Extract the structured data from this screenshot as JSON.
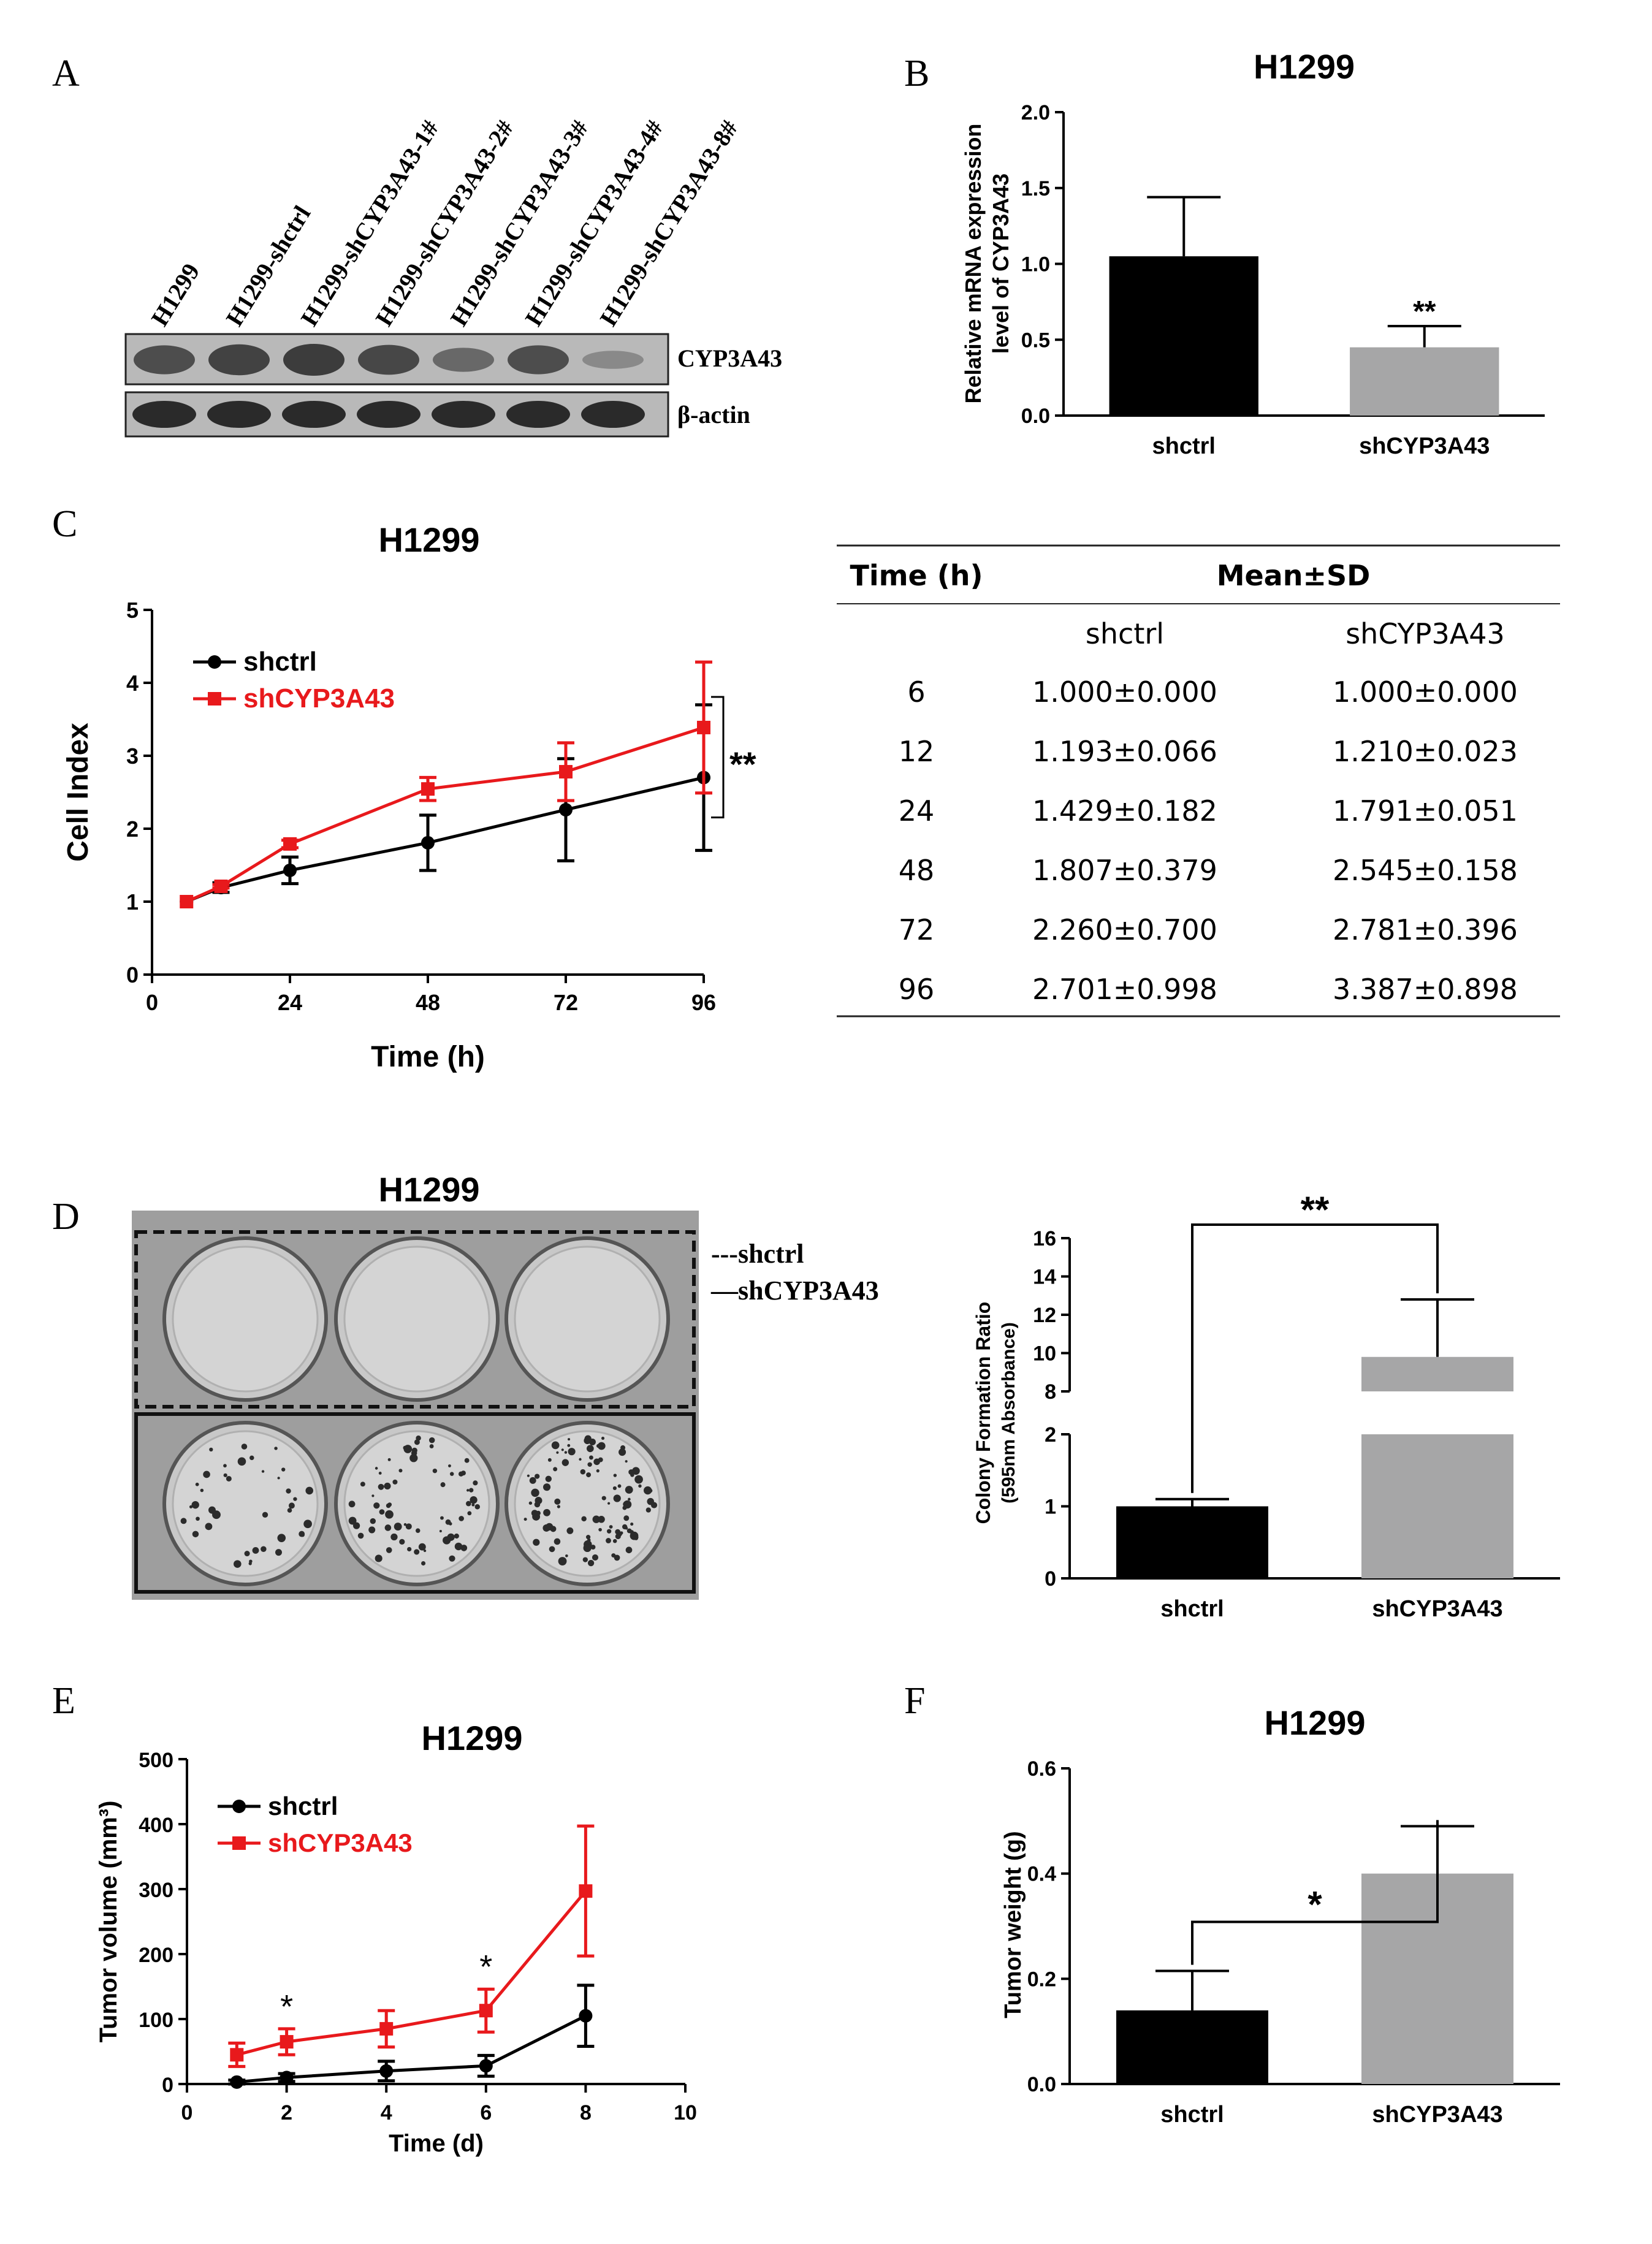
{
  "panel_letters": [
    "A",
    "B",
    "C",
    "D",
    "E",
    "F"
  ],
  "blot": {
    "lane_labels": [
      "H1299",
      "H1299-shctrl",
      "H1299-shCYP3A43-1#",
      "H1299-shCYP3A43-2#",
      "H1299-shCYP3A43-3#",
      "H1299-shCYP3A43-4#",
      "H1299-shCYP3A43-8#"
    ],
    "row_labels": [
      "CYP3A43",
      "β-actin"
    ],
    "cyp3a43_band_strength": [
      0.85,
      0.95,
      1.0,
      0.9,
      0.6,
      0.85,
      0.3
    ]
  },
  "colony": {
    "title": "H1299",
    "legend": [
      "---shctrl",
      "—shCYP3A43"
    ]
  },
  "table": {
    "col_time": "Time (h)",
    "col_stat": "Mean±SD",
    "groups": [
      "shctrl",
      "shCYP3A43"
    ],
    "rows": [
      {
        "time": "6",
        "shctrl": "1.000±0.000",
        "sh": "1.000±0.000"
      },
      {
        "time": "12",
        "shctrl": "1.193±0.066",
        "sh": "1.210±0.023"
      },
      {
        "time": "24",
        "shctrl": "1.429±0.182",
        "sh": "1.791±0.051"
      },
      {
        "time": "48",
        "shctrl": "1.807±0.379",
        "sh": "2.545±0.158"
      },
      {
        "time": "72",
        "shctrl": "2.260±0.700",
        "sh": "2.781±0.396"
      },
      {
        "time": "96",
        "shctrl": "2.701±0.998",
        "sh": "3.387±0.898"
      }
    ]
  },
  "colors": {
    "black": "#000000",
    "red": "#e8191c",
    "gray": "#a6a6a7"
  },
  "chart_data": [
    {
      "id": "B",
      "type": "bar",
      "title": "H1299",
      "ylabel": "Relative mRNA expression level of CYP3A43",
      "categories": [
        "shctrl",
        "shCYP3A43"
      ],
      "values": [
        1.05,
        0.45
      ],
      "errors": [
        0.39,
        0.14
      ],
      "colors": [
        "#000000",
        "#a6a6a7"
      ],
      "ylim": [
        0,
        2.0
      ],
      "yticks": [
        0.0,
        0.5,
        1.0,
        1.5,
        2.0
      ],
      "ytick_labels": [
        "0.0",
        "0.5",
        "1.0",
        "1.5",
        "2.0"
      ],
      "annotation": "**"
    },
    {
      "id": "C",
      "type": "line",
      "title": "H1299",
      "xlabel": "Time (h)",
      "ylabel": "Cell Index",
      "x": [
        6,
        12,
        24,
        48,
        72,
        96
      ],
      "series": [
        {
          "name": "shctrl",
          "color": "#000000",
          "marker": "circle",
          "values": [
            1.0,
            1.193,
            1.429,
            1.807,
            2.26,
            2.701
          ],
          "errors": [
            0.0,
            0.066,
            0.182,
            0.379,
            0.7,
            0.998
          ]
        },
        {
          "name": "shCYP3A43",
          "color": "#e8191c",
          "marker": "square",
          "values": [
            1.0,
            1.21,
            1.791,
            2.545,
            2.781,
            3.387
          ],
          "errors": [
            0.0,
            0.023,
            0.051,
            0.158,
            0.396,
            0.898
          ]
        }
      ],
      "xlim": [
        0,
        96
      ],
      "ylim": [
        0,
        5
      ],
      "xticks": [
        0,
        24,
        48,
        72,
        96
      ],
      "xtick_labels": [
        "0",
        "24",
        "48",
        "72",
        "96"
      ],
      "yticks": [
        0,
        1,
        2,
        3,
        4,
        5
      ],
      "ytick_labels": [
        "0",
        "1",
        "2",
        "3",
        "4",
        "5"
      ],
      "annotation": "**"
    },
    {
      "id": "D",
      "type": "bar",
      "ylabel": "Colony Formation Ratio (595nm Absorbance)",
      "categories": [
        "shctrl",
        "shCYP3A43"
      ],
      "values": [
        1.0,
        9.8
      ],
      "errors": [
        0.1,
        3.0
      ],
      "colors": [
        "#000000",
        "#a6a6a7"
      ],
      "axis_break": [
        2,
        8
      ],
      "ylim": [
        0,
        16
      ],
      "yticks": [
        0,
        1,
        2,
        8,
        10,
        12,
        14,
        16
      ],
      "ytick_labels": [
        "0",
        "1",
        "2",
        "8",
        "10",
        "12",
        "14",
        "16"
      ],
      "annotation": "**"
    },
    {
      "id": "E",
      "type": "line",
      "title": "H1299",
      "xlabel": "Time (d)",
      "ylabel": "Tumor volume (mm³)",
      "x": [
        1,
        2,
        4,
        6,
        8
      ],
      "series": [
        {
          "name": "shctrl",
          "color": "#000000",
          "marker": "circle",
          "values": [
            3,
            10,
            20,
            28,
            105
          ],
          "errors": [
            3,
            6,
            15,
            16,
            47
          ]
        },
        {
          "name": "shCYP3A43",
          "color": "#e8191c",
          "marker": "square",
          "values": [
            45,
            65,
            85,
            113,
            297
          ],
          "errors": [
            18,
            20,
            28,
            33,
            100
          ]
        }
      ],
      "xlim": [
        0,
        10
      ],
      "ylim": [
        0,
        500
      ],
      "xticks": [
        0,
        2,
        4,
        6,
        8,
        10
      ],
      "xtick_labels": [
        "0",
        "2",
        "4",
        "6",
        "8",
        "10"
      ],
      "yticks": [
        0,
        100,
        200,
        300,
        400,
        500
      ],
      "ytick_labels": [
        "0",
        "100",
        "200",
        "300",
        "400",
        "500"
      ],
      "annotations": [
        {
          "x": 2,
          "text": "*"
        },
        {
          "x": 6,
          "text": "*"
        }
      ]
    },
    {
      "id": "F",
      "type": "bar",
      "title": "H1299",
      "ylabel": "Tumor weight (g)",
      "categories": [
        "shctrl",
        "shCYP3A43"
      ],
      "values": [
        0.14,
        0.4
      ],
      "errors": [
        0.075,
        0.09
      ],
      "colors": [
        "#000000",
        "#a6a6a7"
      ],
      "ylim": [
        0,
        0.6
      ],
      "yticks": [
        0.0,
        0.2,
        0.4,
        0.6
      ],
      "ytick_labels": [
        "0.0",
        "0.2",
        "0.4",
        "0.6"
      ],
      "annotation": "*"
    }
  ]
}
